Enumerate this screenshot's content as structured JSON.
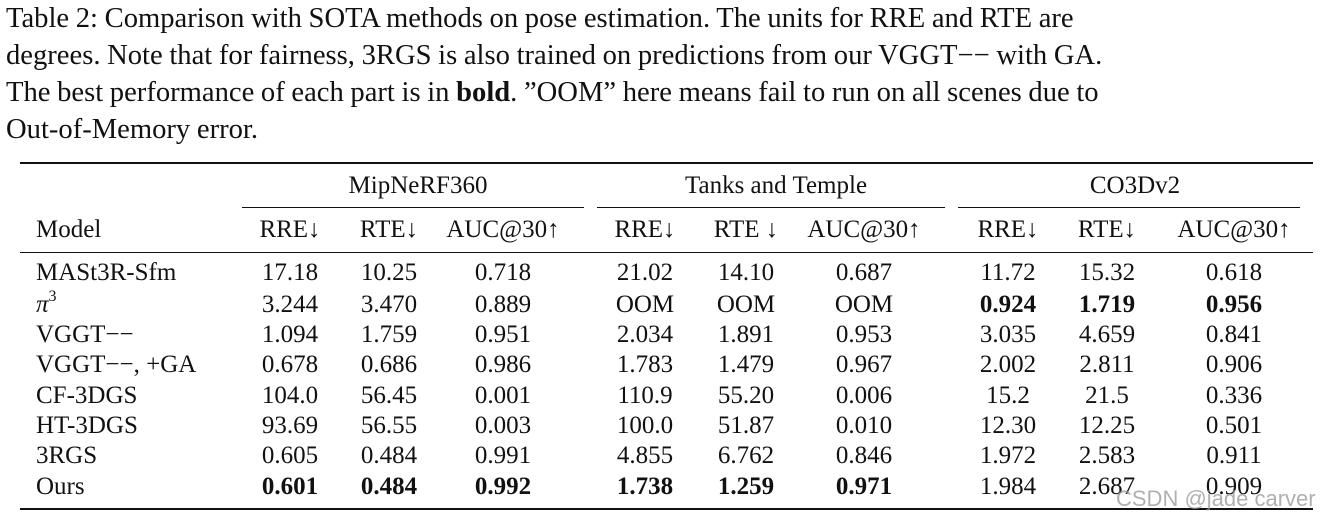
{
  "caption": {
    "line1": "Table 2: Comparison with SOTA methods on pose estimation. The units for RRE and RTE are",
    "line2": "degrees. Note that for fairness, 3RGS is also trained on predictions from our VGGT−− with GA.",
    "line3_a": "The best performance of each part is in ",
    "line3_bold": "bold",
    "line3_b": ". ”OOM” here means fail to run on all scenes due to",
    "line4": "Out-of-Memory error."
  },
  "table": {
    "groups": [
      "MipNeRF360",
      "Tanks and Temple",
      "CO3Dv2"
    ],
    "model_header": "Model",
    "subheaders": [
      "RRE↓",
      "RTE↓",
      "AUC@30↑",
      "RRE↓",
      "RTE ↓",
      "AUC@30↑",
      "RRE↓",
      "RTE↓",
      "AUC@30↑"
    ],
    "rows": [
      {
        "model": "MASt3R-Sfm",
        "values": [
          "17.18",
          "10.25",
          "0.718",
          "21.02",
          "14.10",
          "0.687",
          "11.72",
          "15.32",
          "0.618"
        ],
        "bold": []
      },
      {
        "model_symbol": "π",
        "model_sup": "3",
        "values": [
          "3.244",
          "3.470",
          "0.889",
          "OOM",
          "OOM",
          "OOM",
          "0.924",
          "1.719",
          "0.956"
        ],
        "bold": [
          6,
          7,
          8
        ]
      },
      {
        "model": "VGGT−−",
        "values": [
          "1.094",
          "1.759",
          "0.951",
          "2.034",
          "1.891",
          "0.953",
          "3.035",
          "4.659",
          "0.841"
        ],
        "bold": []
      },
      {
        "model": "VGGT−−, +GA",
        "values": [
          "0.678",
          "0.686",
          "0.986",
          "1.783",
          "1.479",
          "0.967",
          "2.002",
          "2.811",
          "0.906"
        ],
        "bold": []
      },
      {
        "model": "CF-3DGS",
        "values": [
          "104.0",
          "56.45",
          "0.001",
          "110.9",
          "55.20",
          "0.006",
          "15.2",
          "21.5",
          "0.336"
        ],
        "bold": []
      },
      {
        "model": "HT-3DGS",
        "values": [
          "93.69",
          "56.55",
          "0.003",
          "100.0",
          "51.87",
          "0.010",
          "12.30",
          "12.25",
          "0.501"
        ],
        "bold": []
      },
      {
        "model": "3RGS",
        "values": [
          "0.605",
          "0.484",
          "0.991",
          "4.855",
          "6.762",
          "0.846",
          "1.972",
          "2.583",
          "0.911"
        ],
        "bold": []
      },
      {
        "model": "Ours",
        "values": [
          "0.601",
          "0.484",
          "0.992",
          "1.738",
          "1.259",
          "0.971",
          "1.984",
          "2.687",
          "0.909"
        ],
        "bold": [
          0,
          1,
          2,
          3,
          4,
          5
        ]
      }
    ]
  },
  "watermark": "CSDN @jade carver"
}
